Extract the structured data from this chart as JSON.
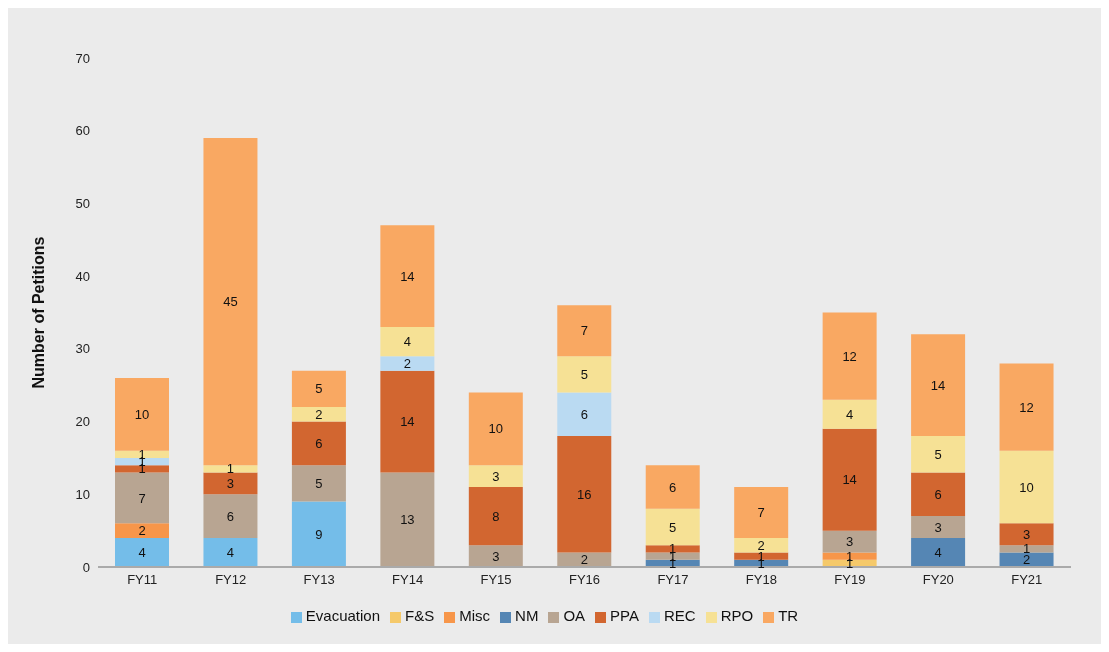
{
  "chart_data": {
    "type": "bar",
    "stacked": true,
    "ylabel": "Number of Petitions",
    "categories": [
      "FY11",
      "FY12",
      "FY13",
      "FY14",
      "FY15",
      "FY16",
      "FY17",
      "FY18",
      "FY19",
      "FY20",
      "FY21"
    ],
    "series": [
      {
        "name": "Evacuation",
        "color": "#74bde9",
        "values": [
          4,
          4,
          9,
          null,
          null,
          null,
          null,
          null,
          null,
          null,
          null
        ]
      },
      {
        "name": "F&S",
        "color": "#f5c96a",
        "values": [
          null,
          null,
          null,
          null,
          null,
          null,
          null,
          null,
          1,
          null,
          null
        ]
      },
      {
        "name": "Misc",
        "color": "#f7964a",
        "values": [
          2,
          null,
          null,
          null,
          null,
          null,
          null,
          null,
          1,
          null,
          null
        ]
      },
      {
        "name": "NM",
        "color": "#5586b4",
        "values": [
          null,
          null,
          null,
          null,
          null,
          null,
          1,
          1,
          null,
          4,
          2
        ]
      },
      {
        "name": "OA",
        "color": "#b8a592",
        "values": [
          7,
          6,
          5,
          13,
          3,
          2,
          1,
          null,
          3,
          3,
          1
        ]
      },
      {
        "name": "PPA",
        "color": "#d26630",
        "values": [
          1,
          3,
          6,
          14,
          8,
          16,
          1,
          1,
          14,
          6,
          3
        ]
      },
      {
        "name": "REC",
        "color": "#badaf2",
        "values": [
          1,
          null,
          null,
          2,
          null,
          6,
          null,
          null,
          null,
          null,
          null
        ]
      },
      {
        "name": "RPO",
        "color": "#f6e195",
        "values": [
          1,
          1,
          2,
          4,
          3,
          5,
          5,
          2,
          4,
          5,
          10
        ]
      },
      {
        "name": "TR",
        "color": "#f9a862",
        "values": [
          10,
          45,
          5,
          14,
          10,
          7,
          6,
          7,
          12,
          14,
          12
        ]
      }
    ],
    "ylim": [
      0,
      70
    ],
    "yticks": [
      0,
      10,
      20,
      30,
      40,
      50,
      60,
      70
    ],
    "grid": false,
    "legend": "bottom",
    "data_labels": true
  }
}
